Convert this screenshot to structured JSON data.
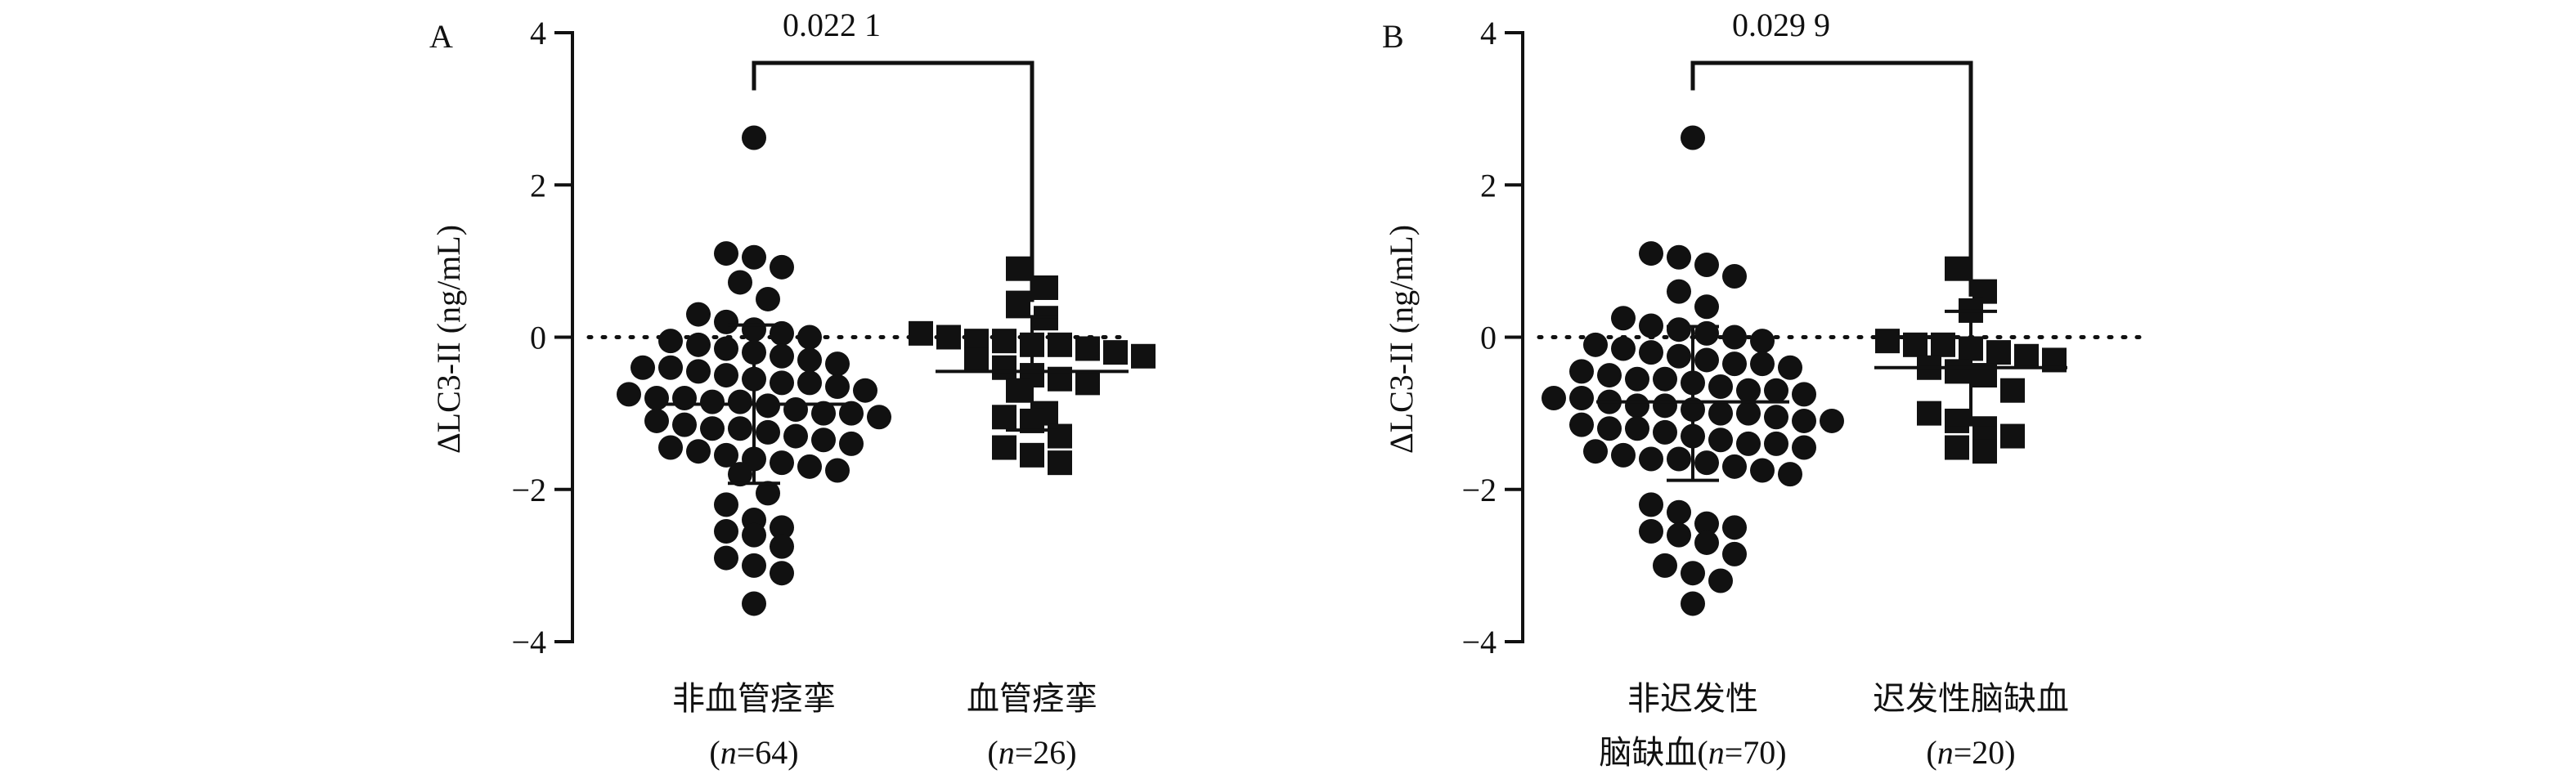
{
  "chart_data": [
    {
      "panel": "A",
      "type": "scatter",
      "ylabel": "ΔLC3-II (ng/mL)",
      "ylim": [
        -4,
        4
      ],
      "yticks": [
        4,
        2,
        0,
        -2,
        -4
      ],
      "ytick_labels": [
        "4",
        "2",
        "0",
        "−2",
        "−4"
      ],
      "reference_line_y": 0,
      "p_value": "0.022 1",
      "series": [
        {
          "name": "非血管痉挛",
          "n_label": "(n=64)",
          "n_prefix": "(",
          "n_italic": "n",
          "n_suffix": "=64)",
          "marker": "circle",
          "mean": -0.88,
          "sd_low": -1.92,
          "sd_high": 0.16,
          "points": [
            2.62,
            1.1,
            1.05,
            0.92,
            0.72,
            0.5,
            0.3,
            0.2,
            0.1,
            0.05,
            0.0,
            -0.05,
            -0.1,
            -0.15,
            -0.2,
            -0.25,
            -0.3,
            -0.35,
            -0.4,
            -0.4,
            -0.45,
            -0.5,
            -0.55,
            -0.6,
            -0.6,
            -0.65,
            -0.7,
            -0.75,
            -0.8,
            -0.8,
            -0.85,
            -0.85,
            -0.9,
            -0.95,
            -1.0,
            -1.0,
            -1.05,
            -1.1,
            -1.15,
            -1.2,
            -1.2,
            -1.25,
            -1.3,
            -1.35,
            -1.4,
            -1.45,
            -1.5,
            -1.55,
            -1.6,
            -1.65,
            -1.7,
            -1.75,
            -1.8,
            -2.05,
            -2.2,
            -2.4,
            -2.5,
            -2.55,
            -2.6,
            -2.75,
            -2.9,
            -3.0,
            -3.1,
            -3.5
          ]
        },
        {
          "name": "血管痉挛",
          "n_label": "(n=26)",
          "n_prefix": "(",
          "n_italic": "n",
          "n_suffix": "=26)",
          "marker": "square",
          "mean": -0.45,
          "sd_low": -1.22,
          "sd_high": 0.27,
          "points": [
            0.9,
            0.65,
            0.45,
            0.25,
            0.05,
            0.0,
            -0.05,
            -0.05,
            -0.1,
            -0.1,
            -0.15,
            -0.2,
            -0.25,
            -0.3,
            -0.4,
            -0.5,
            -0.55,
            -0.6,
            -0.7,
            -1.0,
            -1.05,
            -1.1,
            -1.3,
            -1.45,
            -1.55,
            -1.65
          ]
        }
      ]
    },
    {
      "panel": "B",
      "type": "scatter",
      "ylabel": "ΔLC3-II (ng/mL)",
      "ylim": [
        -4,
        4
      ],
      "yticks": [
        4,
        2,
        0,
        -2,
        -4
      ],
      "ytick_labels": [
        "4",
        "2",
        "0",
        "−2",
        "−4"
      ],
      "reference_line_y": 0,
      "p_value": "0.029 9",
      "series": [
        {
          "name": "非迟发性",
          "name_line2_prefix": "脑缺血",
          "n_label": "脑缺血(n=70)",
          "n_prefix": "脑缺血(",
          "n_italic": "n",
          "n_suffix": "=70)",
          "marker": "circle",
          "mean": -0.85,
          "sd_low": -1.88,
          "sd_high": 0.14,
          "points": [
            2.62,
            1.1,
            1.05,
            0.95,
            0.8,
            0.6,
            0.4,
            0.25,
            0.15,
            0.1,
            0.05,
            0.0,
            -0.05,
            -0.1,
            -0.15,
            -0.2,
            -0.25,
            -0.3,
            -0.35,
            -0.35,
            -0.4,
            -0.45,
            -0.5,
            -0.55,
            -0.55,
            -0.6,
            -0.65,
            -0.7,
            -0.7,
            -0.75,
            -0.8,
            -0.8,
            -0.85,
            -0.9,
            -0.9,
            -0.95,
            -1.0,
            -1.0,
            -1.05,
            -1.1,
            -1.1,
            -1.15,
            -1.2,
            -1.2,
            -1.25,
            -1.3,
            -1.35,
            -1.4,
            -1.4,
            -1.45,
            -1.5,
            -1.55,
            -1.6,
            -1.6,
            -1.65,
            -1.7,
            -1.75,
            -1.8,
            -2.2,
            -2.3,
            -2.45,
            -2.5,
            -2.55,
            -2.6,
            -2.7,
            -2.85,
            -3.0,
            -3.1,
            -3.2,
            -3.5
          ]
        },
        {
          "name": "迟发性脑缺血",
          "n_label": "(n=20)",
          "n_prefix": "(",
          "n_italic": "n",
          "n_suffix": "=20)",
          "marker": "square",
          "mean": -0.4,
          "sd_low": -1.15,
          "sd_high": 0.34,
          "points": [
            0.9,
            0.6,
            0.35,
            -0.05,
            -0.1,
            -0.1,
            -0.15,
            -0.2,
            -0.25,
            -0.3,
            -0.4,
            -0.45,
            -0.5,
            -0.7,
            -1.0,
            -1.1,
            -1.2,
            -1.3,
            -1.45,
            -1.5
          ]
        }
      ]
    }
  ]
}
